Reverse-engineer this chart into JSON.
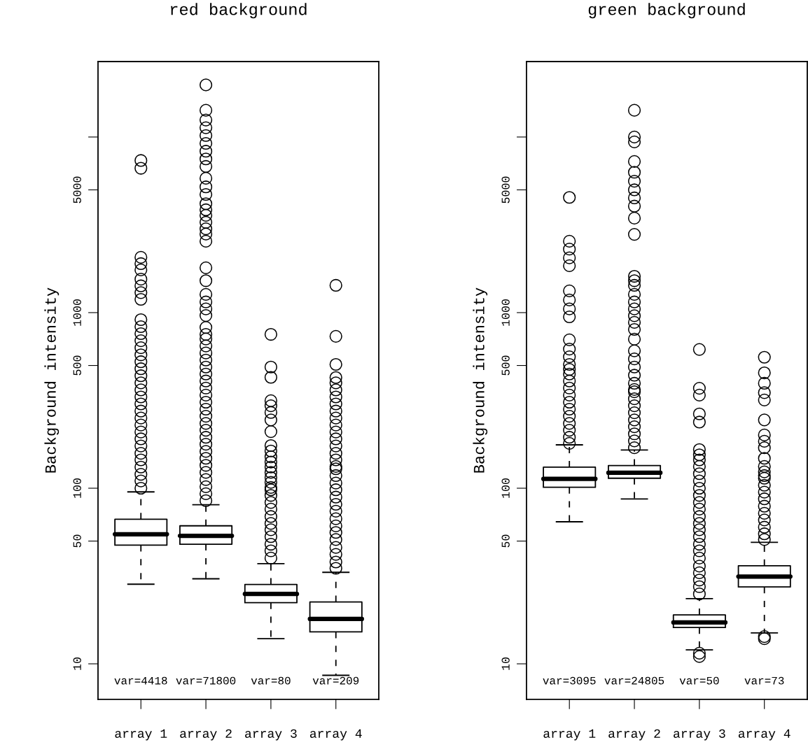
{
  "chart_data": [
    {
      "type": "box",
      "title": "red background",
      "ylabel": "Background intensity",
      "log": "y",
      "categories": [
        "array 1",
        "array 2",
        "array 3",
        "array 4"
      ],
      "ylim": [
        6.27,
        26900
      ],
      "yticks": [
        10,
        50,
        100,
        500,
        1000,
        5000,
        {
          "value": 10000,
          "label": null
        }
      ],
      "boxes": [
        {
          "low": 28.4,
          "q1": 47.4,
          "median": 54.7,
          "q3": 66.6,
          "high": 95.3,
          "outliers": [
            100,
            110,
            120,
            132,
            145,
            158,
            174,
            191,
            209,
            229,
            251,
            275,
            302,
            331,
            363,
            398,
            437,
            479,
            525,
            575,
            631,
            692,
            759,
            832,
            912,
            1190,
            1300,
            1420,
            1550,
            1750,
            1900,
            2065,
            6640,
            7350
          ]
        },
        {
          "low": 30.5,
          "q1": 48.0,
          "median": 53.6,
          "q3": 61.1,
          "high": 80.5,
          "outliers": [
            85,
            93,
            102,
            112,
            123,
            135,
            148,
            162,
            178,
            195,
            214,
            234,
            257,
            282,
            309,
            339,
            372,
            408,
            447,
            490,
            537,
            589,
            646,
            708,
            752,
            824,
            963,
            1050,
            1150,
            1270,
            1520,
            1800,
            2550,
            2800,
            3000,
            3270,
            3580,
            3850,
            4170,
            4710,
            5200,
            5820,
            6800,
            7500,
            8300,
            9200,
            10200,
            11300,
            12500,
            14200,
            19800
          ]
        },
        {
          "low": 13.9,
          "q1": 22.3,
          "median": 25.0,
          "q3": 28.3,
          "high": 37.2,
          "outliers": [
            40,
            44,
            48,
            53,
            58,
            63,
            69,
            76,
            83,
            91,
            98,
            101,
            108,
            115,
            123,
            132,
            141,
            151,
            163,
            175,
            210,
            245,
            270,
            295,
            315,
            428,
            490,
            752
          ]
        },
        {
          "low": 8.6,
          "q1": 15.2,
          "median": 18.0,
          "q3": 22.5,
          "high": 33.2,
          "outliers": [
            35,
            38,
            42,
            46,
            51,
            56,
            61,
            67,
            74,
            81,
            89,
            98,
            107,
            118,
            129,
            133,
            145,
            158,
            174,
            191,
            209,
            229,
            251,
            275,
            302,
            331,
            363,
            398,
            427,
            507,
            733,
            1430
          ]
        }
      ],
      "annotations": [
        "var=4418",
        "var=71800",
        "var=80",
        "var=209"
      ]
    },
    {
      "type": "box",
      "title": "green background",
      "ylabel": "Background intensity",
      "log": "y",
      "categories": [
        "array 1",
        "array 2",
        "array 3",
        "array 4"
      ],
      "ylim": [
        6.27,
        26900
      ],
      "yticks": [
        10,
        50,
        100,
        500,
        1000,
        5000,
        {
          "value": 10000,
          "label": null
        }
      ],
      "boxes": [
        {
          "low": 64.4,
          "q1": 101.2,
          "median": 113.0,
          "q3": 131.8,
          "high": 176.6,
          "outliers": [
            180,
            195,
            214,
            234,
            257,
            282,
            309,
            339,
            372,
            408,
            447,
            475,
            507,
            560,
            620,
            700,
            946,
            1050,
            1180,
            1330,
            1850,
            2050,
            2300,
            2550,
            4530
          ]
        },
        {
          "low": 86.9,
          "q1": 114.0,
          "median": 122.4,
          "q3": 134.6,
          "high": 165,
          "outliers": [
            170,
            186,
            204,
            224,
            245,
            269,
            295,
            323,
            354,
            365,
            396,
            440,
            490,
            545,
            606,
            706,
            802,
            880,
            960,
            1050,
            1150,
            1270,
            1430,
            1520,
            1610,
            2790,
            3450,
            4040,
            4500,
            5000,
            5600,
            6300,
            7260,
            9380,
            10000,
            14200
          ]
        },
        {
          "low": 12.0,
          "q1": 16.1,
          "median": 17.2,
          "q3": 19.0,
          "high": 23.5,
          "outliers": [
            11.5,
            11.0,
            25,
            27.5,
            30,
            33,
            36,
            40,
            44,
            48,
            53,
            58,
            63,
            69,
            76,
            83,
            91,
            100,
            110,
            121,
            133,
            145,
            155,
            166,
            238,
            265,
            339,
            371,
            617
          ]
        },
        {
          "low": 15.0,
          "q1": 27.4,
          "median": 31.4,
          "q3": 36.2,
          "high": 49.2,
          "outliers": [
            14.3,
            13.9,
            51,
            55,
            60,
            66,
            72,
            79,
            87,
            95,
            104,
            114,
            118,
            124,
            133,
            148,
            170,
            185,
            201,
            245,
            318,
            350,
            396,
            454,
            557
          ]
        }
      ],
      "annotations": [
        "var=3095",
        "var=24805",
        "var=50",
        "var=73"
      ]
    }
  ]
}
